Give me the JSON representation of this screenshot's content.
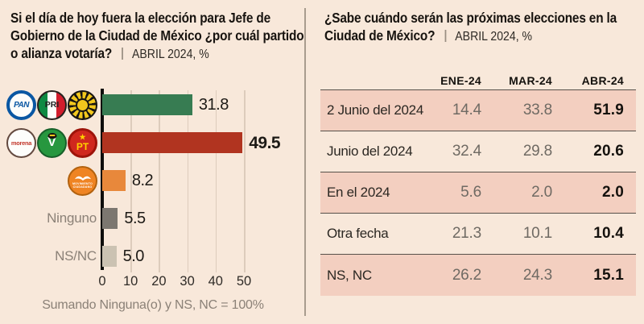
{
  "page": {
    "background_color": "#f8e8da",
    "stripe_color": "#f3cfc0"
  },
  "chart_data": [
    {
      "type": "bar",
      "orientation": "horizontal",
      "title": "Si el día de hoy fuera la elección para Jefe de Gobierno de la Ciudad de México ¿por cuál partido o alianza votaría?",
      "subtitle": "ABRIL 2024, %",
      "categories": [
        "PAN-PRI-PRD",
        "Morena-PVEM-PT",
        "Movimiento Ciudadano",
        "Ninguno",
        "NS/NC"
      ],
      "values": [
        31.8,
        49.5,
        8.2,
        5.5,
        5.0
      ],
      "value_labels": [
        "31.8",
        "49.5",
        "8.2",
        "5.5",
        "5.0"
      ],
      "value_bold": [
        false,
        true,
        false,
        false,
        false
      ],
      "bar_colors": [
        "#377c52",
        "#b13420",
        "#e8883b",
        "#7c7770",
        "#cbc2b2"
      ],
      "category_icons": [
        [
          "pan-logo",
          "pri-logo",
          "prd-logo"
        ],
        [
          "morena-logo",
          "pvem-logo",
          "pt-logo"
        ],
        [
          "mc-logo"
        ],
        [],
        []
      ],
      "category_text_labels": [
        "",
        "",
        "",
        "Ninguno",
        "NS/NC"
      ],
      "icon_texts": {
        "pan": "PAN",
        "pri": "PRI",
        "morena": "morena",
        "pvem": "V",
        "pt_star": "★",
        "pt": "PT",
        "mc_line1": "MOVIMIENTO",
        "mc_line2": "CIUDADANO"
      },
      "x_axis": {
        "min": 0,
        "max": 55,
        "ticks": [
          0,
          10,
          20,
          30,
          40,
          50
        ],
        "grid": true
      },
      "footnote": "Sumando Ninguna(o) y NS, NC = 100%"
    },
    {
      "type": "table",
      "title": "¿Sabe cuándo serán las próximas elecciones en la Ciudad de México?",
      "subtitle": "ABRIL 2024, %",
      "columns": [
        "ENE-24",
        "MAR-24",
        "ABR-24"
      ],
      "rows": [
        {
          "label": "2 Junio del 2024",
          "values": [
            "14.4",
            "33.8",
            "51.9"
          ]
        },
        {
          "label": "Junio del 2024",
          "values": [
            "32.4",
            "29.8",
            "20.6"
          ]
        },
        {
          "label": "En el 2024",
          "values": [
            "5.6",
            "2.0",
            "2.0"
          ]
        },
        {
          "label": "Otra fecha",
          "values": [
            "21.3",
            "10.1",
            "10.4"
          ]
        },
        {
          "label": "NS, NC",
          "values": [
            "26.2",
            "24.3",
            "15.1"
          ]
        }
      ],
      "emphasized_column": "ABR-24",
      "legend_position": "none"
    }
  ]
}
